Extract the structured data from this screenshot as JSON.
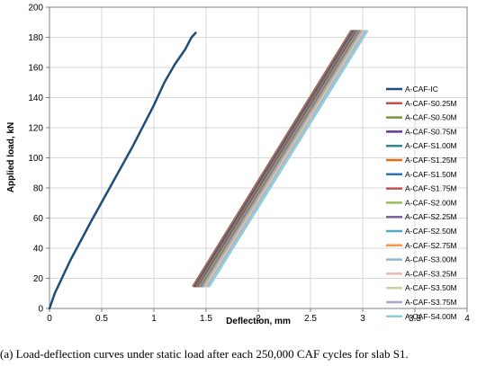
{
  "chart_data": {
    "type": "line",
    "title": "",
    "xlabel": "Deflection, mm",
    "ylabel": "Applied load, kN",
    "xlim": [
      0,
      4
    ],
    "ylim": [
      0,
      200
    ],
    "x_ticks": [
      "0",
      "0.5",
      "1",
      "1.5",
      "2",
      "2.5",
      "3",
      "3.5",
      "4"
    ],
    "y_ticks": [
      "0",
      "20",
      "40",
      "60",
      "80",
      "100",
      "120",
      "140",
      "160",
      "180",
      "200"
    ],
    "grid": true,
    "legend_position": "right",
    "series": [
      {
        "name": "A-CAF-IC",
        "color": "#1f4e79",
        "x": [
          0,
          0.05,
          0.2,
          0.4,
          0.6,
          0.8,
          1.0,
          1.1,
          1.2,
          1.3,
          1.36,
          1.4
        ],
        "y": [
          0,
          10,
          32,
          58,
          83,
          108,
          135,
          150,
          162,
          172,
          180,
          183
        ]
      },
      {
        "name": "A-CAF-S0.25M",
        "color": "#c0504d",
        "x": [
          1.38,
          2.89
        ],
        "y": [
          15,
          184
        ]
      },
      {
        "name": "A-CAF-S0.50M",
        "color": "#77933c",
        "x": [
          1.39,
          2.9
        ],
        "y": [
          15,
          184
        ]
      },
      {
        "name": "A-CAF-S0.75M",
        "color": "#7030a0",
        "x": [
          1.4,
          2.91
        ],
        "y": [
          15,
          184
        ]
      },
      {
        "name": "A-CAF-S1.00M",
        "color": "#31859c",
        "x": [
          1.41,
          2.92
        ],
        "y": [
          15,
          184
        ]
      },
      {
        "name": "A-CAF-S1.25M",
        "color": "#e46c0a",
        "x": [
          1.42,
          2.93
        ],
        "y": [
          15,
          184
        ]
      },
      {
        "name": "A-CAF-S1.50M",
        "color": "#2e75b6",
        "x": [
          1.43,
          2.94
        ],
        "y": [
          15,
          184
        ]
      },
      {
        "name": "A-CAF-S1.75M",
        "color": "#c0504d",
        "x": [
          1.44,
          2.95
        ],
        "y": [
          15,
          184
        ]
      },
      {
        "name": "A-CAF-S2.00M",
        "color": "#9bbb59",
        "x": [
          1.45,
          2.96
        ],
        "y": [
          15,
          184
        ]
      },
      {
        "name": "A-CAF-S2.25M",
        "color": "#8064a2",
        "x": [
          1.46,
          2.97
        ],
        "y": [
          15,
          184
        ]
      },
      {
        "name": "A-CAF-S2.50M",
        "color": "#4bacc6",
        "x": [
          1.47,
          2.98
        ],
        "y": [
          15,
          184
        ]
      },
      {
        "name": "A-CAF-S2.75M",
        "color": "#f79646",
        "x": [
          1.48,
          2.99
        ],
        "y": [
          15,
          184
        ]
      },
      {
        "name": "A-CAF-S3.00M",
        "color": "#95b3d7",
        "x": [
          1.49,
          3.0
        ],
        "y": [
          15,
          184
        ]
      },
      {
        "name": "A-CAF-S3.25M",
        "color": "#e6b9b8",
        "x": [
          1.5,
          3.01
        ],
        "y": [
          15,
          184
        ]
      },
      {
        "name": "A-CAF-S3.50M",
        "color": "#c3d69b",
        "x": [
          1.51,
          3.02
        ],
        "y": [
          15,
          184
        ]
      },
      {
        "name": "A-CAF-S3.75M",
        "color": "#b3a2c7",
        "x": [
          1.52,
          3.03
        ],
        "y": [
          15,
          184
        ]
      },
      {
        "name": "A-CAF-S4.00M",
        "color": "#92cddc",
        "x": [
          1.53,
          3.04
        ],
        "y": [
          15,
          184
        ]
      }
    ]
  },
  "caption": "(a) Load-deflection curves under static load after each 250,000 CAF cycles for slab S1."
}
